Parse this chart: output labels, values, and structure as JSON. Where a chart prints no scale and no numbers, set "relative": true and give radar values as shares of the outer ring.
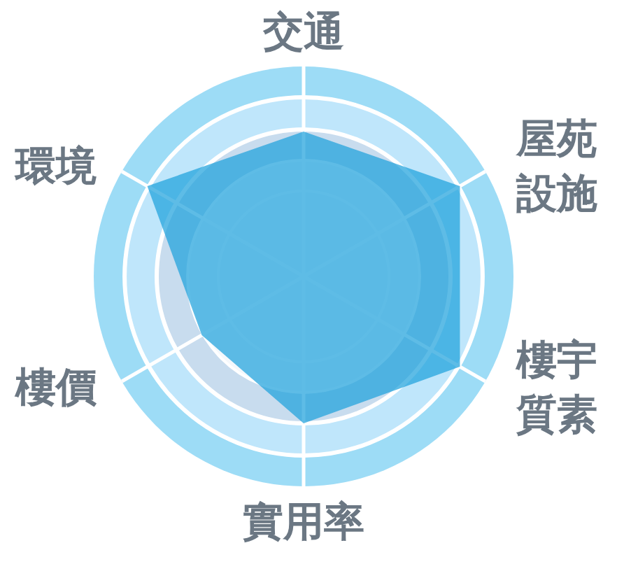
{
  "chart_data": {
    "type": "radar",
    "categories": [
      "交通",
      "屋苑設施",
      "樓宇質素",
      "實用率",
      "樓價",
      "環境"
    ],
    "series": [
      {
        "color": "#1aa0dc",
        "values": [
          0.69,
          0.86,
          0.86,
          0.7,
          0.56,
          0.86
        ]
      }
    ],
    "relative": true,
    "grid": true
  }
}
